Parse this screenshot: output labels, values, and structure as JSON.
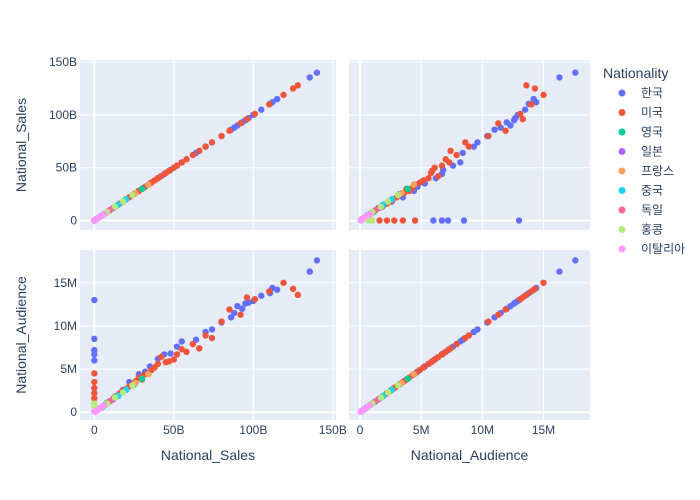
{
  "chart_data": {
    "type": "scatter",
    "subtype": "scatter-matrix",
    "dimensions": [
      "National_Sales",
      "National_Audience"
    ],
    "axes": {
      "National_Sales": {
        "label": "National_Sales",
        "range": [
          -9000000000,
          152000000000
        ],
        "ticks": [
          0,
          50000000000,
          100000000000,
          150000000000
        ],
        "tick_labels": [
          "0",
          "50B",
          "100B",
          "150B"
        ]
      },
      "National_Audience": {
        "label": "National_Audience",
        "range": [
          -900000,
          18800000
        ],
        "ticks": [
          0,
          5000000,
          10000000,
          15000000
        ],
        "tick_labels": [
          "0",
          "5M",
          "10M",
          "15M"
        ]
      }
    },
    "legend": {
      "title": "Nationality",
      "placement": "right"
    },
    "grid": true,
    "series": [
      {
        "name": "한국",
        "color": "#636efa",
        "points": [
          [
            140000000000,
            17600000
          ],
          [
            135500000000,
            16300000
          ],
          [
            115000000000,
            14200000
          ],
          [
            112000000000,
            14400000
          ],
          [
            110500000000,
            13800000
          ],
          [
            105000000000,
            13500000
          ],
          [
            100000000000,
            12900000
          ],
          [
            97000000000,
            12700000
          ],
          [
            95000000000,
            12600000
          ],
          [
            93000000000,
            12000000
          ],
          [
            90000000000,
            12300000
          ],
          [
            88000000000,
            11500000
          ],
          [
            86000000000,
            11000000
          ],
          [
            80000000000,
            10400000
          ],
          [
            74000000000,
            9600000
          ],
          [
            70000000000,
            9300000
          ],
          [
            64000000000,
            8400000
          ],
          [
            55000000000,
            8200000
          ],
          [
            52000000000,
            7600000
          ],
          [
            48000000000,
            6800000
          ],
          [
            44000000000,
            6700000
          ],
          [
            40000000000,
            6200000
          ],
          [
            35000000000,
            5300000
          ],
          [
            32000000000,
            4700000
          ],
          [
            28000000000,
            4400000
          ],
          [
            22000000000,
            3500000
          ],
          [
            18000000000,
            2600000
          ],
          [
            13000000000,
            1800000
          ],
          [
            8000000000,
            1100000
          ],
          [
            4000000000,
            500000
          ],
          [
            1500000000,
            200000
          ],
          [
            0,
            13000000
          ],
          [
            0,
            8500000
          ],
          [
            0,
            7200000
          ],
          [
            0,
            6700000
          ],
          [
            0,
            6000000
          ]
        ]
      },
      {
        "name": "미국",
        "color": "#EF553B",
        "points": [
          [
            128000000000,
            13600000
          ],
          [
            125000000000,
            14300000
          ],
          [
            119000000000,
            15000000
          ],
          [
            110000000000,
            14000000
          ],
          [
            101000000000,
            13100000
          ],
          [
            96000000000,
            13300000
          ],
          [
            92000000000,
            11300000
          ],
          [
            85000000000,
            11900000
          ],
          [
            80000000000,
            10500000
          ],
          [
            74000000000,
            8600000
          ],
          [
            70000000000,
            8900000
          ],
          [
            66000000000,
            7400000
          ],
          [
            62000000000,
            7900000
          ],
          [
            58000000000,
            7000000
          ],
          [
            55000000000,
            7300000
          ],
          [
            52000000000,
            6700000
          ],
          [
            50000000000,
            6100000
          ],
          [
            47000000000,
            5900000
          ],
          [
            45000000000,
            5800000
          ],
          [
            42000000000,
            6400000
          ],
          [
            40000000000,
            5600000
          ],
          [
            38000000000,
            5200000
          ],
          [
            36000000000,
            4900000
          ],
          [
            34000000000,
            4500000
          ],
          [
            31000000000,
            4300000
          ],
          [
            30000000000,
            3800000
          ],
          [
            28000000000,
            4000000
          ],
          [
            26000000000,
            3600000
          ],
          [
            24000000000,
            3200000
          ],
          [
            22000000000,
            3000000
          ],
          [
            20000000000,
            2700000
          ],
          [
            18000000000,
            2500000
          ],
          [
            16000000000,
            2200000
          ],
          [
            14000000000,
            1900000
          ],
          [
            12000000000,
            1600000
          ],
          [
            10000000000,
            1300000
          ],
          [
            8000000000,
            1000000
          ],
          [
            6000000000,
            800000
          ],
          [
            4000000000,
            500000
          ],
          [
            2000000000,
            250000
          ],
          [
            0,
            4500000
          ],
          [
            0,
            3500000
          ],
          [
            0,
            2800000
          ],
          [
            0,
            2200000
          ],
          [
            0,
            1600000
          ]
        ]
      },
      {
        "name": "영국",
        "color": "#00cc96",
        "points": [
          [
            30000000000,
            3900000
          ],
          [
            25000000000,
            3200000
          ],
          [
            20000000000,
            2600000
          ],
          [
            15000000000,
            1900000
          ],
          [
            10000000000,
            1300000
          ],
          [
            6000000000,
            800000
          ],
          [
            3000000000,
            400000
          ]
        ]
      },
      {
        "name": "일본",
        "color": "#ab63fa",
        "points": [
          [
            12000000000,
            1500000
          ],
          [
            9000000000,
            1200000
          ],
          [
            6000000000,
            800000
          ],
          [
            3000000000,
            400000
          ],
          [
            1000000000,
            150000
          ]
        ]
      },
      {
        "name": "프랑스",
        "color": "#FFA15A",
        "points": [
          [
            34000000000,
            4400000
          ],
          [
            26000000000,
            3400000
          ],
          [
            20000000000,
            2600000
          ],
          [
            14000000000,
            1800000
          ],
          [
            8000000000,
            1000000
          ],
          [
            4000000000,
            500000
          ]
        ]
      },
      {
        "name": "중국",
        "color": "#19d3f3",
        "points": [
          [
            20000000000,
            2600000
          ],
          [
            15000000000,
            1900000
          ],
          [
            9000000000,
            1200000
          ],
          [
            5000000000,
            600000
          ],
          [
            2000000000,
            250000
          ]
        ]
      },
      {
        "name": "독일",
        "color": "#FF6692",
        "points": [
          [
            10000000000,
            1300000
          ],
          [
            7000000000,
            900000
          ],
          [
            4000000000,
            500000
          ],
          [
            2000000000,
            250000
          ]
        ]
      },
      {
        "name": "홍콩",
        "color": "#B6E880",
        "points": [
          [
            24000000000,
            3100000
          ],
          [
            18000000000,
            2300000
          ],
          [
            13000000000,
            1700000
          ],
          [
            8000000000,
            1000000
          ],
          [
            0,
            1000000
          ],
          [
            0,
            700000
          ]
        ]
      },
      {
        "name": "이탈리아",
        "color": "#FF97FF",
        "points": [
          [
            6000000000,
            800000
          ],
          [
            4000000000,
            500000
          ],
          [
            2500000000,
            300000
          ],
          [
            1200000000,
            150000
          ],
          [
            400000000,
            50000
          ],
          [
            0,
            100000
          ]
        ]
      }
    ]
  }
}
